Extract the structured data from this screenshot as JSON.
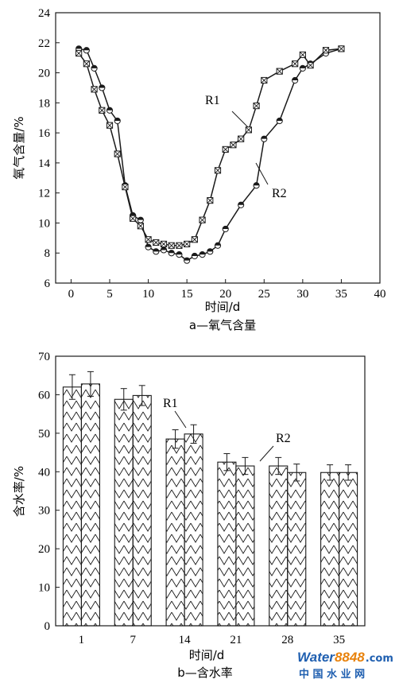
{
  "chart_data": [
    {
      "type": "line",
      "caption": "a—氧气含量",
      "xlabel": "时间/d",
      "ylabel": "氧气含量/%",
      "xlim": [
        -2,
        40
      ],
      "ylim": [
        6,
        24
      ],
      "xticks": [
        0,
        5,
        10,
        15,
        20,
        25,
        30,
        35,
        40
      ],
      "yticks": [
        6,
        8,
        10,
        12,
        14,
        16,
        18,
        20,
        22,
        24
      ],
      "grid": false,
      "series": [
        {
          "name": "R1",
          "marker": "square-x",
          "x": [
            1,
            2,
            3,
            4,
            5,
            6,
            7,
            8,
            9,
            10,
            11,
            12,
            13,
            14,
            15,
            16,
            17,
            18,
            19,
            20,
            21,
            22,
            23,
            24,
            25,
            27,
            29,
            30,
            31,
            33,
            35
          ],
          "y": [
            21.3,
            20.6,
            18.9,
            17.5,
            16.5,
            14.6,
            12.4,
            10.3,
            9.8,
            8.9,
            8.7,
            8.6,
            8.5,
            8.5,
            8.6,
            8.9,
            10.2,
            11.5,
            13.5,
            14.9,
            15.2,
            15.6,
            16.2,
            17.8,
            19.5,
            20.1,
            20.6,
            21.2,
            20.5,
            21.5,
            21.6
          ]
        },
        {
          "name": "R2",
          "marker": "circle",
          "x": [
            1,
            2,
            3,
            4,
            5,
            6,
            7,
            8,
            9,
            10,
            11,
            12,
            13,
            14,
            15,
            16,
            17,
            18,
            19,
            20,
            22,
            24,
            25,
            27,
            29,
            30,
            31,
            33,
            35
          ],
          "y": [
            21.6,
            21.5,
            20.3,
            19.0,
            17.5,
            16.8,
            12.5,
            10.5,
            10.2,
            8.4,
            8.1,
            8.2,
            8.0,
            7.9,
            7.5,
            7.8,
            7.9,
            8.1,
            8.5,
            9.6,
            11.2,
            12.5,
            15.6,
            16.8,
            19.5,
            20.3,
            20.6,
            21.3,
            21.6
          ]
        }
      ]
    },
    {
      "type": "bar",
      "caption": "b—含水率",
      "xlabel": "时间/d",
      "ylabel": "含水率/%",
      "ylim": [
        0,
        70
      ],
      "yticks": [
        0,
        10,
        20,
        30,
        40,
        50,
        60,
        70
      ],
      "categories": [
        "1",
        "7",
        "14",
        "21",
        "28",
        "35"
      ],
      "grid": false,
      "series": [
        {
          "name": "R1",
          "values": [
            62.0,
            58.8,
            48.5,
            42.5,
            41.5,
            39.8
          ],
          "errors": [
            3.2,
            2.8,
            2.4,
            2.2,
            2.2,
            2.0
          ]
        },
        {
          "name": "R2",
          "values": [
            62.8,
            59.8,
            49.8,
            41.5,
            39.8,
            39.8
          ],
          "errors": [
            3.2,
            2.6,
            2.4,
            2.2,
            2.2,
            2.0
          ]
        }
      ]
    }
  ],
  "watermark": {
    "brand": "Water",
    "brand_suffix": "8848",
    "domain_suffix": ".com",
    "subtitle": "中 国 水 业 网"
  },
  "colors": {
    "ink": "#1a1a1a",
    "watermark_blue": "#1f5fb0",
    "watermark_orange": "#e8820c"
  }
}
